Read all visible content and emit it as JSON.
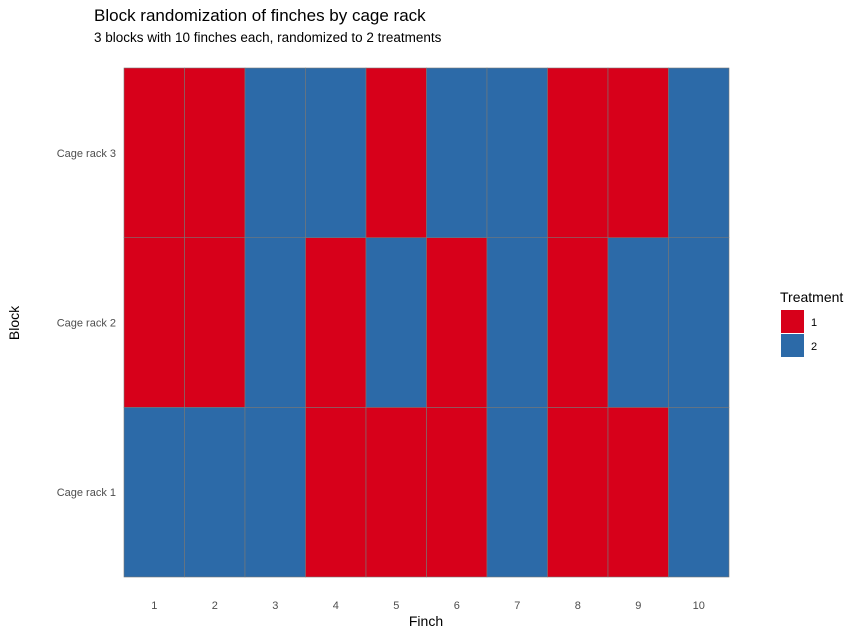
{
  "chart_data": {
    "type": "heatmap",
    "title": "Block randomization of finches by cage rack",
    "subtitle": "3 blocks with 10 finches each, randomized to 2 treatments",
    "xlabel": "Finch",
    "ylabel": "Block",
    "x_categories": [
      "1",
      "2",
      "3",
      "4",
      "5",
      "6",
      "7",
      "8",
      "9",
      "10"
    ],
    "y_categories": [
      "Cage rack 1",
      "Cage rack 2",
      "Cage rack 3"
    ],
    "values": [
      [
        2,
        2,
        2,
        1,
        1,
        1,
        2,
        1,
        1,
        2
      ],
      [
        1,
        1,
        2,
        1,
        2,
        1,
        2,
        1,
        2,
        2
      ],
      [
        1,
        1,
        2,
        2,
        1,
        2,
        2,
        1,
        1,
        2
      ]
    ],
    "legend": {
      "title": "Treatment",
      "position": "right",
      "items": [
        {
          "label": "1",
          "value": 1,
          "color": "#d7001a"
        },
        {
          "label": "2",
          "value": 2,
          "color": "#2c6aa8"
        }
      ]
    },
    "grid": false
  }
}
